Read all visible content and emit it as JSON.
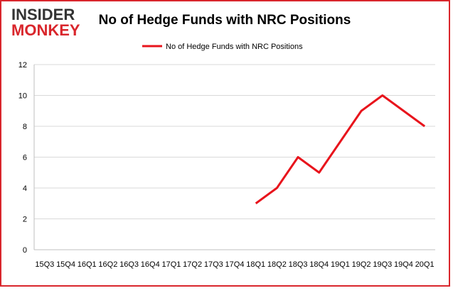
{
  "logo": {
    "top": "INSIDER",
    "bottom": "MONKEY"
  },
  "chart_data": {
    "type": "line",
    "title": "No of Hedge Funds with NRC Positions",
    "categories": [
      "15Q3",
      "15Q4",
      "16Q1",
      "16Q2",
      "16Q3",
      "16Q4",
      "17Q1",
      "17Q2",
      "17Q3",
      "17Q4",
      "18Q1",
      "18Q2",
      "18Q3",
      "18Q4",
      "19Q1",
      "19Q2",
      "19Q3",
      "19Q4",
      "20Q1"
    ],
    "series": [
      {
        "name": "No of Hedge Funds with NRC Positions",
        "color": "#e8141c",
        "values": [
          null,
          null,
          null,
          null,
          null,
          null,
          null,
          null,
          null,
          null,
          3,
          4,
          6,
          5,
          7,
          9,
          10,
          9,
          8
        ]
      }
    ],
    "ylim": [
      0,
      12
    ],
    "yticks": [
      0,
      2,
      4,
      6,
      8,
      10,
      12
    ],
    "grid": true,
    "legend": "top"
  }
}
